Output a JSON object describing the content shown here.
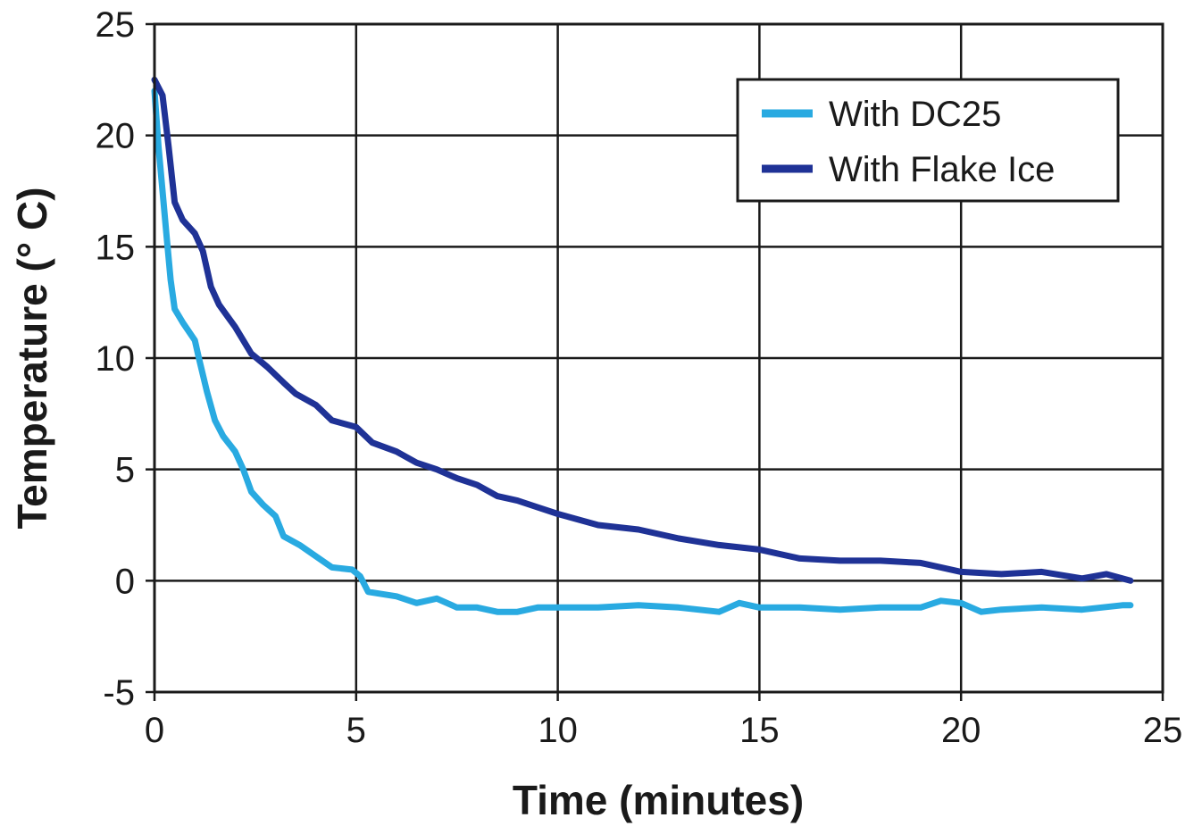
{
  "chart_data": {
    "type": "line",
    "xlabel": "Time (minutes)",
    "ylabel": "Temperature (° C)",
    "xlim": [
      0,
      25
    ],
    "ylim": [
      -5,
      25
    ],
    "xticks": [
      0,
      5,
      10,
      15,
      20,
      25
    ],
    "yticks": [
      -5,
      0,
      5,
      10,
      15,
      20,
      25
    ],
    "grid": true,
    "legend_position": "top-right",
    "series": [
      {
        "name": "With DC25",
        "color": "#29aae1",
        "points": [
          [
            0,
            22
          ],
          [
            0.1,
            19.5
          ],
          [
            0.2,
            17.5
          ],
          [
            0.3,
            15.5
          ],
          [
            0.4,
            13.5
          ],
          [
            0.5,
            12.2
          ],
          [
            0.7,
            11.6
          ],
          [
            1.0,
            10.8
          ],
          [
            1.1,
            10.0
          ],
          [
            1.3,
            8.5
          ],
          [
            1.5,
            7.2
          ],
          [
            1.7,
            6.5
          ],
          [
            2.0,
            5.8
          ],
          [
            2.2,
            5.0
          ],
          [
            2.4,
            4.0
          ],
          [
            2.7,
            3.4
          ],
          [
            3.0,
            2.9
          ],
          [
            3.2,
            2.0
          ],
          [
            3.6,
            1.6
          ],
          [
            4.0,
            1.1
          ],
          [
            4.4,
            0.6
          ],
          [
            4.9,
            0.5
          ],
          [
            5.1,
            0.2
          ],
          [
            5.3,
            -0.5
          ],
          [
            6.0,
            -0.7
          ],
          [
            6.5,
            -1.0
          ],
          [
            7.0,
            -0.8
          ],
          [
            7.5,
            -1.2
          ],
          [
            8.0,
            -1.2
          ],
          [
            8.5,
            -1.4
          ],
          [
            9.0,
            -1.4
          ],
          [
            9.5,
            -1.2
          ],
          [
            10.0,
            -1.2
          ],
          [
            11.0,
            -1.2
          ],
          [
            12.0,
            -1.1
          ],
          [
            13.0,
            -1.2
          ],
          [
            14.0,
            -1.4
          ],
          [
            14.5,
            -1.0
          ],
          [
            15.0,
            -1.2
          ],
          [
            16.0,
            -1.2
          ],
          [
            17.0,
            -1.3
          ],
          [
            18.0,
            -1.2
          ],
          [
            19.0,
            -1.2
          ],
          [
            19.5,
            -0.9
          ],
          [
            20.0,
            -1.0
          ],
          [
            20.5,
            -1.4
          ],
          [
            21.0,
            -1.3
          ],
          [
            22.0,
            -1.2
          ],
          [
            23.0,
            -1.3
          ],
          [
            24.0,
            -1.1
          ],
          [
            24.2,
            -1.1
          ]
        ]
      },
      {
        "name": "With Flake Ice",
        "color": "#1f3296",
        "points": [
          [
            0,
            22.5
          ],
          [
            0.2,
            21.8
          ],
          [
            0.35,
            19.5
          ],
          [
            0.5,
            17.0
          ],
          [
            0.7,
            16.2
          ],
          [
            1.0,
            15.6
          ],
          [
            1.2,
            14.8
          ],
          [
            1.4,
            13.2
          ],
          [
            1.6,
            12.4
          ],
          [
            2.0,
            11.4
          ],
          [
            2.4,
            10.2
          ],
          [
            2.8,
            9.6
          ],
          [
            3.2,
            8.9
          ],
          [
            3.5,
            8.4
          ],
          [
            4.0,
            7.9
          ],
          [
            4.4,
            7.2
          ],
          [
            5.0,
            6.9
          ],
          [
            5.4,
            6.2
          ],
          [
            6.0,
            5.8
          ],
          [
            6.5,
            5.3
          ],
          [
            7.0,
            5.0
          ],
          [
            7.5,
            4.6
          ],
          [
            8.0,
            4.3
          ],
          [
            8.5,
            3.8
          ],
          [
            9.0,
            3.6
          ],
          [
            9.5,
            3.3
          ],
          [
            10.0,
            3.0
          ],
          [
            11.0,
            2.5
          ],
          [
            12.0,
            2.3
          ],
          [
            13.0,
            1.9
          ],
          [
            14.0,
            1.6
          ],
          [
            15.0,
            1.4
          ],
          [
            16.0,
            1.0
          ],
          [
            17.0,
            0.9
          ],
          [
            18.0,
            0.9
          ],
          [
            19.0,
            0.8
          ],
          [
            20.0,
            0.4
          ],
          [
            21.0,
            0.3
          ],
          [
            22.0,
            0.4
          ],
          [
            23.0,
            0.1
          ],
          [
            23.6,
            0.3
          ],
          [
            24.2,
            0.0
          ]
        ]
      }
    ]
  }
}
